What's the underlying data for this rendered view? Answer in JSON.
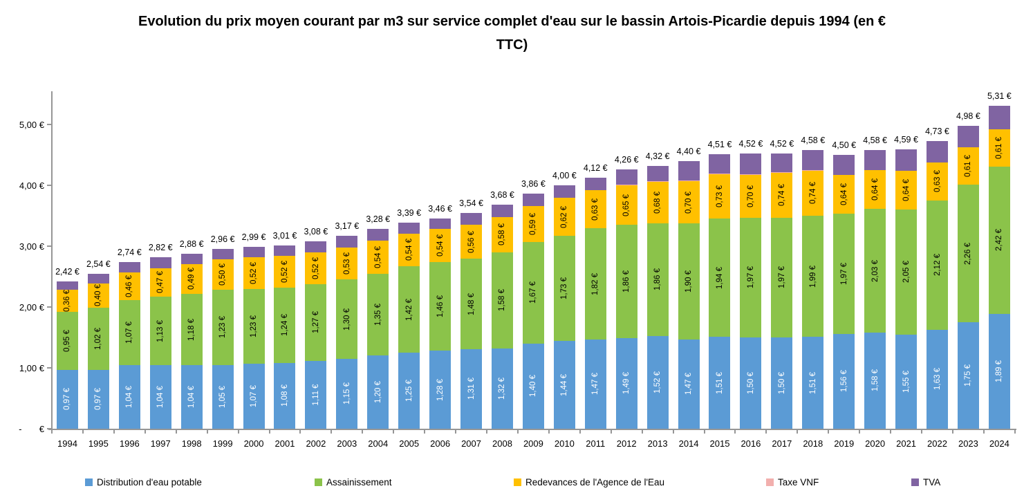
{
  "title": {
    "line1": "Evolution du prix moyen courant par m3 sur service complet d'eau sur le bassin Artois-Picardie depuis 1994 (en €",
    "line2": "TTC)"
  },
  "y_axis": {
    "labels": [
      "-       €",
      "1,00 €",
      "2,00 €",
      "3,00 €",
      "4,00 €",
      "5,00 €"
    ],
    "axis_color": "#969696"
  },
  "chart_data": {
    "type": "bar",
    "stacked": true,
    "title": "Evolution du prix moyen courant par m3 sur service complet d'eau sur le bassin Artois-Picardie depuis 1994 (en € TTC)",
    "ylim": [
      0,
      5.5
    ],
    "grid": false,
    "legend_position": "bottom",
    "value_format": "0,00 €",
    "categories": [
      1994,
      1995,
      1996,
      1997,
      1998,
      1999,
      2000,
      2001,
      2002,
      2003,
      2004,
      2005,
      2006,
      2007,
      2008,
      2009,
      2010,
      2011,
      2012,
      2013,
      2014,
      2015,
      2016,
      2017,
      2018,
      2019,
      2020,
      2021,
      2022,
      2023,
      2024
    ],
    "series": [
      {
        "name": "Distribution d'eau potable",
        "key": "distribution-eau-potable",
        "color": "#5B9BD5",
        "label_color": "white",
        "labeled": true,
        "values": [
          0.97,
          0.97,
          1.04,
          1.04,
          1.04,
          1.05,
          1.07,
          1.08,
          1.11,
          1.15,
          1.2,
          1.25,
          1.28,
          1.31,
          1.32,
          1.4,
          1.44,
          1.47,
          1.49,
          1.52,
          1.47,
          1.51,
          1.5,
          1.5,
          1.51,
          1.56,
          1.58,
          1.55,
          1.63,
          1.75,
          1.89
        ]
      },
      {
        "name": "Assainissement",
        "key": "assainissement",
        "color": "#8BC34A",
        "label_color": "black",
        "labeled": true,
        "values": [
          0.95,
          1.02,
          1.07,
          1.13,
          1.18,
          1.23,
          1.23,
          1.24,
          1.27,
          1.3,
          1.35,
          1.42,
          1.46,
          1.48,
          1.58,
          1.67,
          1.73,
          1.82,
          1.86,
          1.86,
          1.9,
          1.94,
          1.97,
          1.97,
          1.99,
          1.97,
          2.03,
          2.05,
          2.12,
          2.26,
          2.42
        ]
      },
      {
        "name": "Redevances de l'Agence de l'Eau",
        "key": "redevances-agence-eau",
        "color": "#FFC000",
        "label_color": "black",
        "labeled": true,
        "values": [
          0.36,
          0.4,
          0.46,
          0.47,
          0.49,
          0.5,
          0.52,
          0.52,
          0.52,
          0.53,
          0.54,
          0.54,
          0.54,
          0.56,
          0.58,
          0.59,
          0.62,
          0.63,
          0.65,
          0.68,
          0.7,
          0.73,
          0.7,
          0.74,
          0.74,
          0.64,
          0.64,
          0.64,
          0.63,
          0.61,
          0.61
        ]
      },
      {
        "name": "Taxe VNF",
        "key": "taxe-vnf",
        "color": "#F2AFAD",
        "label_color": "black",
        "labeled": false,
        "values": [
          0,
          0,
          0,
          0,
          0,
          0,
          0,
          0,
          0,
          0,
          0,
          0,
          0,
          0,
          0,
          0,
          0,
          0,
          0.01,
          0.01,
          0.01,
          0.01,
          0.01,
          0.01,
          0.01,
          0,
          0,
          0,
          0,
          0,
          0
        ]
      },
      {
        "name": "TVA",
        "key": "tva",
        "color": "#8064A2",
        "label_color": "black",
        "labeled": false,
        "values": [
          0.14,
          0.15,
          0.17,
          0.18,
          0.17,
          0.18,
          0.17,
          0.17,
          0.18,
          0.19,
          0.19,
          0.18,
          0.18,
          0.19,
          0.2,
          0.2,
          0.21,
          0.2,
          0.25,
          0.25,
          0.32,
          0.32,
          0.34,
          0.3,
          0.33,
          0.33,
          0.33,
          0.35,
          0.35,
          0.36,
          0.39
        ]
      }
    ],
    "totals": [
      2.42,
      2.54,
      2.74,
      2.82,
      2.88,
      2.96,
      2.99,
      3.01,
      3.08,
      3.17,
      3.28,
      3.39,
      3.46,
      3.54,
      3.68,
      3.86,
      4.0,
      4.12,
      4.26,
      4.32,
      4.4,
      4.51,
      4.52,
      4.52,
      4.58,
      4.5,
      4.58,
      4.59,
      4.73,
      4.98,
      5.31
    ]
  }
}
